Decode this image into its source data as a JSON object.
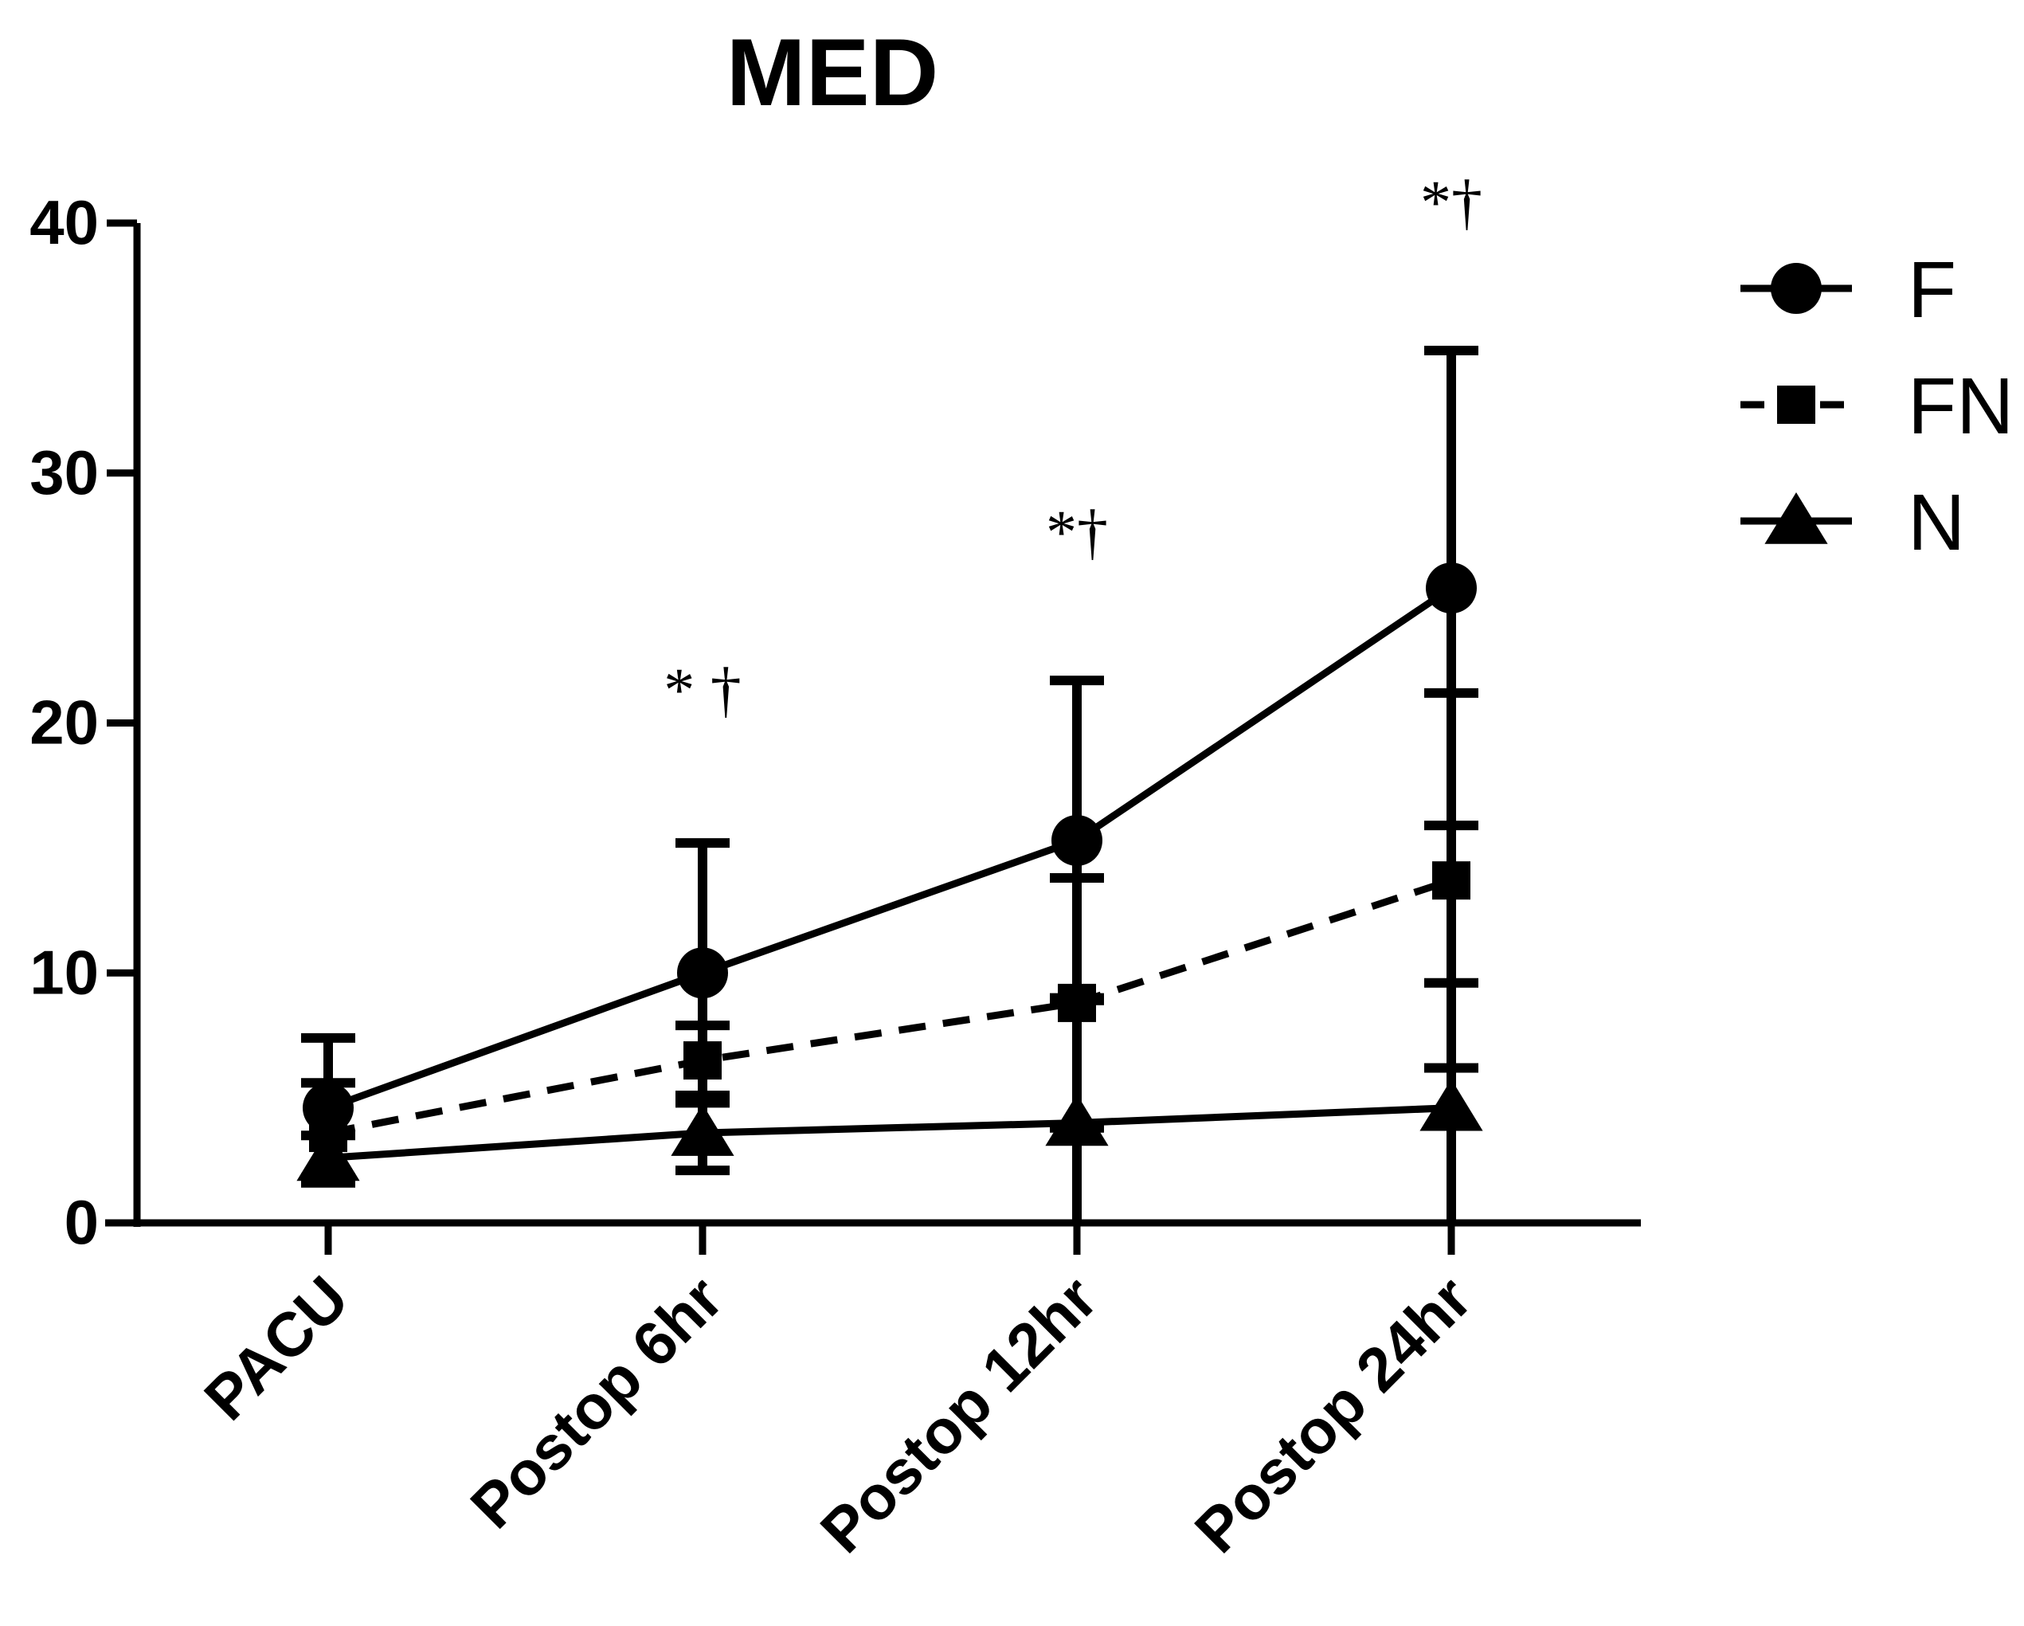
{
  "chart_data": {
    "type": "line",
    "title": "MED",
    "xlabel": "",
    "ylabel": "",
    "categories": [
      "PACU",
      "Postop 6hr",
      "Postop 12hr",
      "Postop 24hr"
    ],
    "ylim": [
      0,
      40
    ],
    "yticks": [
      "0",
      "10",
      "20",
      "30",
      "40"
    ],
    "grid": false,
    "legend_position": "top-right",
    "series": [
      {
        "name": "F",
        "marker": "circle",
        "line": "solid",
        "values": [
          4.6,
          10.0,
          15.3,
          25.4
        ],
        "errors": [
          2.8,
          5.2,
          6.4,
          9.5
        ]
      },
      {
        "name": "FN",
        "marker": "square",
        "line": "dashed",
        "values": [
          3.6,
          6.5,
          8.8,
          13.7
        ],
        "errors": [
          2.0,
          1.4,
          5.0,
          7.5
        ]
      },
      {
        "name": "N",
        "marker": "triangle",
        "line": "solid",
        "values": [
          2.6,
          3.6,
          4.0,
          4.6
        ],
        "errors": [
          0.9,
          1.5,
          5.0,
          5.0
        ]
      }
    ],
    "annotations": [
      {
        "category": "Postop 6hr",
        "y": 20.5,
        "text": "* †"
      },
      {
        "category": "Postop 12hr",
        "y": 26.8,
        "text": "*†"
      },
      {
        "category": "Postop 24hr",
        "y": 40.0,
        "text": "*†"
      }
    ],
    "colors": {
      "line": "#000000",
      "background": "#ffffff"
    }
  }
}
